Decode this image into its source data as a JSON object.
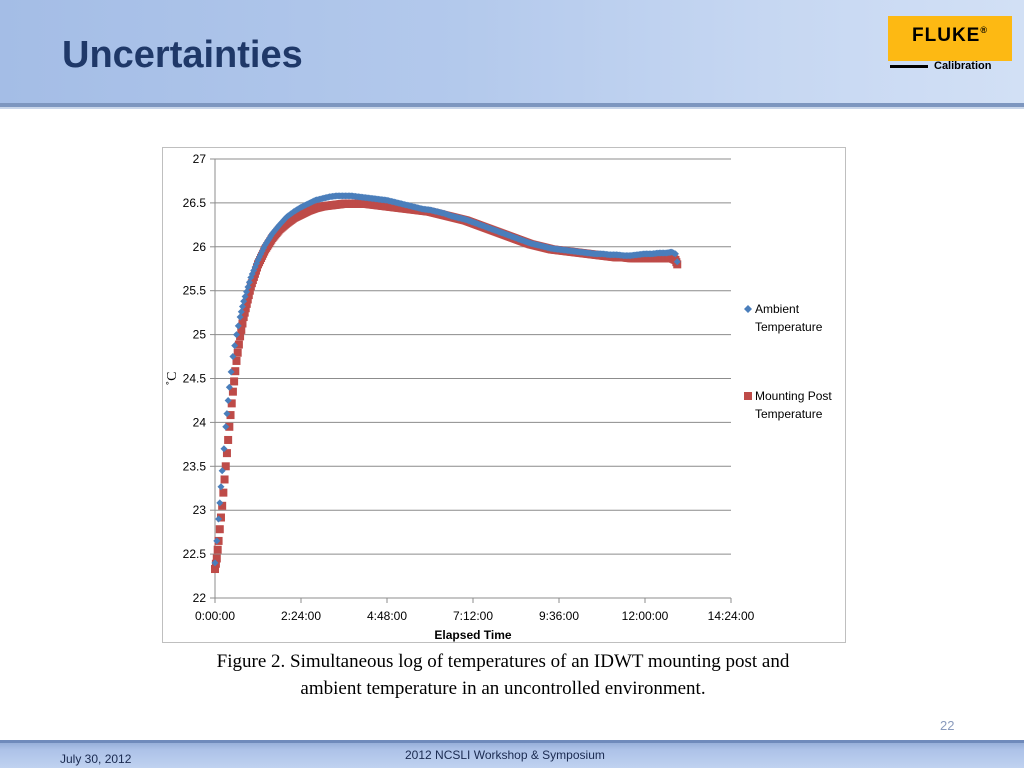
{
  "slide": {
    "title": "Uncertainties",
    "logo_text": "FLUKE",
    "logo_registered": "®",
    "logo_sub": "Calibration",
    "page_number": "22",
    "footer_date": "July 30, 2012",
    "footer_center": "2012 NCSLI Workshop & Symposium",
    "caption_line1": "Figure 2. Simultaneous log of temperatures of an IDWT mounting post and",
    "caption_line2": "ambient temperature in an uncontrolled environment."
  },
  "colors": {
    "ambient": "#4a7ebb",
    "mounting": "#be4b48",
    "title": "#1f3868",
    "logo_bg": "#fdb913"
  },
  "chart_data": {
    "type": "scatter",
    "title": "",
    "xlabel": "Elapsed Time",
    "ylabel": "˚C",
    "xlim_hours": [
      0,
      14.4
    ],
    "ylim": [
      22,
      27
    ],
    "y_ticks": [
      "22",
      "22.5",
      "23",
      "23.5",
      "24",
      "24.5",
      "25",
      "25.5",
      "26",
      "26.5",
      "27"
    ],
    "x_ticks": [
      "0:00:00",
      "2:24:00",
      "4:48:00",
      "7:12:00",
      "9:36:00",
      "12:00:00",
      "14:24:00"
    ],
    "legend_position": "right",
    "series": [
      {
        "name": "Ambient Temperature",
        "legend_line1": "Ambient",
        "legend_line2": "Temperature",
        "marker": "diamond",
        "x_hours": [
          0.0,
          0.05,
          0.1,
          0.2,
          0.3,
          0.4,
          0.5,
          0.6,
          0.7,
          0.8,
          1.0,
          1.2,
          1.4,
          1.6,
          1.8,
          2.0,
          2.2,
          2.4,
          2.6,
          2.8,
          3.0,
          3.2,
          3.4,
          3.6,
          3.8,
          4.0,
          4.2,
          4.4,
          4.6,
          4.8,
          5.0,
          5.2,
          5.4,
          5.6,
          5.8,
          6.0,
          6.2,
          6.4,
          6.6,
          6.8,
          7.0,
          7.2,
          7.4,
          7.6,
          7.8,
          8.0,
          8.2,
          8.4,
          8.6,
          8.8,
          9.0,
          9.2,
          9.4,
          9.6,
          9.8,
          10.0,
          10.2,
          10.4,
          10.6,
          10.8,
          11.0,
          11.2,
          11.4,
          11.6,
          11.8,
          12.0,
          12.2,
          12.4,
          12.6,
          12.75,
          12.85,
          12.9
        ],
        "values": [
          22.4,
          22.65,
          22.9,
          23.45,
          23.95,
          24.4,
          24.75,
          25.0,
          25.2,
          25.38,
          25.65,
          25.85,
          26.02,
          26.15,
          26.25,
          26.34,
          26.4,
          26.45,
          26.49,
          26.53,
          26.55,
          26.57,
          26.58,
          26.58,
          26.58,
          26.57,
          26.56,
          26.55,
          26.54,
          26.53,
          26.51,
          26.49,
          26.47,
          26.45,
          26.43,
          26.42,
          26.4,
          26.38,
          26.35,
          26.33,
          26.31,
          26.28,
          26.25,
          26.22,
          26.19,
          26.16,
          26.13,
          26.1,
          26.07,
          26.04,
          26.02,
          26.0,
          25.98,
          25.97,
          25.96,
          25.95,
          25.94,
          25.93,
          25.92,
          25.92,
          25.91,
          25.91,
          25.9,
          25.9,
          25.91,
          25.92,
          25.92,
          25.93,
          25.93,
          25.94,
          25.92,
          25.83
        ]
      },
      {
        "name": "Mounting Post Temperature",
        "legend_line1": "Mounting Post",
        "legend_line2": "Temperature",
        "marker": "square",
        "x_hours": [
          0.0,
          0.05,
          0.1,
          0.2,
          0.3,
          0.4,
          0.5,
          0.6,
          0.7,
          0.8,
          1.0,
          1.2,
          1.4,
          1.6,
          1.8,
          2.0,
          2.2,
          2.4,
          2.6,
          2.8,
          3.0,
          3.2,
          3.4,
          3.6,
          3.8,
          4.0,
          4.2,
          4.4,
          4.6,
          4.8,
          5.0,
          5.2,
          5.4,
          5.6,
          5.8,
          6.0,
          6.2,
          6.4,
          6.6,
          6.8,
          7.0,
          7.2,
          7.4,
          7.6,
          7.8,
          8.0,
          8.2,
          8.4,
          8.6,
          8.8,
          9.0,
          9.2,
          9.4,
          9.6,
          9.8,
          10.0,
          10.2,
          10.4,
          10.6,
          10.8,
          11.0,
          11.2,
          11.4,
          11.6,
          11.8,
          12.0,
          12.2,
          12.4,
          12.6,
          12.75,
          12.85,
          12.9
        ],
        "values": [
          22.33,
          22.45,
          22.65,
          23.05,
          23.5,
          23.95,
          24.35,
          24.7,
          24.98,
          25.2,
          25.55,
          25.8,
          25.97,
          26.1,
          26.2,
          26.27,
          26.33,
          26.37,
          26.41,
          26.44,
          26.46,
          26.47,
          26.48,
          26.49,
          26.49,
          26.49,
          26.49,
          26.48,
          26.47,
          26.46,
          26.45,
          26.44,
          26.43,
          26.42,
          26.41,
          26.4,
          26.38,
          26.36,
          26.34,
          26.32,
          26.3,
          26.27,
          26.24,
          26.21,
          26.18,
          26.15,
          26.12,
          26.09,
          26.06,
          26.03,
          26.01,
          25.99,
          25.97,
          25.96,
          25.95,
          25.94,
          25.93,
          25.92,
          25.91,
          25.9,
          25.89,
          25.88,
          25.88,
          25.87,
          25.87,
          25.87,
          25.87,
          25.87,
          25.87,
          25.87,
          25.85,
          25.8
        ]
      }
    ]
  }
}
